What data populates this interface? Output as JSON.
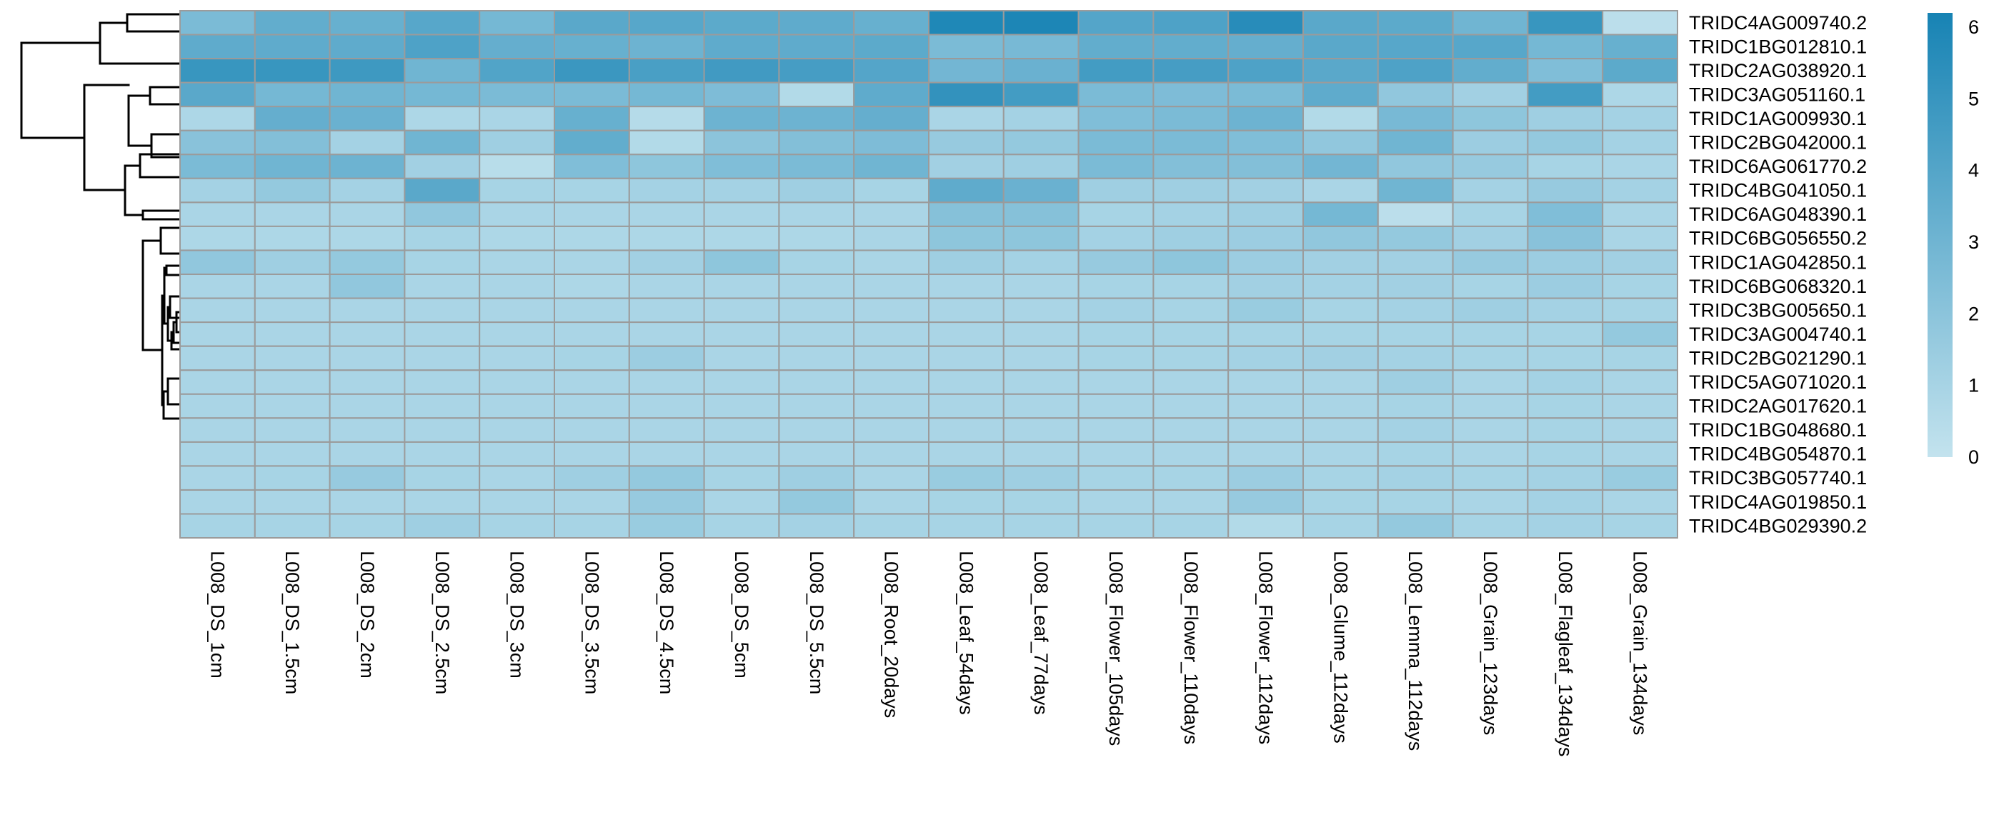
{
  "chart_data": {
    "type": "heatmap",
    "title": "",
    "xlabel": "",
    "ylabel": "",
    "columns": [
      "L008_DS_1cm",
      "L008_DS_1.5cm",
      "L008_DS_2cm",
      "L008_DS_2.5cm",
      "L008_DS_3cm",
      "L008_DS_3.5cm",
      "L008_DS_4.5cm",
      "L008_DS_5cm",
      "L008_DS_5.5cm",
      "L008_Root_20days",
      "L008_Leaf_54days",
      "L008_Leaf_77days",
      "L008_Flower_105days",
      "L008_Flower_110days",
      "L008_Flower_112days",
      "L008_Glume_112days",
      "L008_Lemma_112days",
      "L008_Grain_123days",
      "L008_Flagleaf_134days",
      "L008_Grain_134days"
    ],
    "rows": [
      "TRIDC4AG009740.2",
      "TRIDC1BG012810.1",
      "TRIDC2AG038920.1",
      "TRIDC3AG051160.1",
      "TRIDC1AG009930.1",
      "TRIDC2BG042000.1",
      "TRIDC6AG061770.2",
      "TRIDC4BG041050.1",
      "TRIDC6AG048390.1",
      "TRIDC6BG056550.2",
      "TRIDC1AG042850.1",
      "TRIDC6BG068320.1",
      "TRIDC3BG005650.1",
      "TRIDC3AG004740.1",
      "TRIDC2BG021290.1",
      "TRIDC5AG071020.1",
      "TRIDC2AG017620.1",
      "TRIDC1BG048680.1",
      "TRIDC4BG054870.1",
      "TRIDC3BG057740.1",
      "TRIDC4AG019850.1",
      "TRIDC4BG029390.2"
    ],
    "values": [
      [
        2.6,
        3.5,
        3.3,
        3.9,
        2.8,
        3.8,
        3.9,
        3.7,
        3.6,
        3.3,
        5.9,
        6.0,
        4.0,
        4.2,
        5.6,
        3.8,
        3.7,
        3.0,
        5.0,
        0.3
      ],
      [
        3.6,
        3.6,
        3.6,
        4.2,
        3.4,
        3.3,
        3.1,
        3.6,
        3.6,
        3.7,
        2.6,
        2.7,
        3.5,
        3.5,
        3.4,
        3.8,
        3.9,
        3.9,
        2.8,
        3.3
      ],
      [
        5.0,
        5.0,
        4.8,
        3.0,
        4.1,
        4.9,
        4.4,
        4.7,
        4.5,
        4.0,
        2.9,
        3.2,
        4.6,
        4.5,
        4.2,
        3.8,
        4.2,
        3.5,
        2.4,
        3.7
      ],
      [
        3.8,
        2.8,
        3.0,
        2.8,
        2.6,
        2.6,
        2.8,
        2.5,
        0.6,
        3.6,
        5.2,
        4.6,
        2.6,
        2.5,
        2.6,
        3.6,
        1.8,
        1.2,
        4.6,
        0.8
      ],
      [
        0.8,
        3.4,
        3.2,
        0.8,
        0.9,
        3.3,
        0.5,
        3.1,
        3.1,
        3.4,
        0.9,
        1.1,
        2.4,
        2.6,
        3.1,
        0.6,
        2.7,
        1.9,
        1.3,
        1.1
      ],
      [
        2.1,
        2.3,
        1.1,
        3.0,
        1.3,
        3.5,
        0.6,
        2.0,
        2.3,
        2.5,
        1.6,
        1.7,
        2.6,
        2.6,
        2.4,
        1.8,
        3.0,
        1.4,
        1.7,
        1.1
      ],
      [
        2.6,
        3.0,
        3.1,
        1.2,
        0.4,
        2.4,
        1.9,
        2.4,
        2.6,
        3.0,
        1.2,
        1.3,
        2.6,
        2.3,
        2.3,
        2.9,
        1.8,
        1.6,
        1.0,
        0.9
      ],
      [
        1.1,
        1.7,
        1.1,
        3.8,
        1.0,
        1.0,
        1.1,
        1.1,
        1.3,
        1.0,
        3.6,
        3.2,
        1.3,
        1.3,
        1.2,
        0.9,
        3.0,
        1.1,
        1.6,
        1.1
      ],
      [
        0.9,
        0.9,
        0.9,
        1.8,
        0.9,
        0.9,
        0.9,
        0.9,
        0.9,
        0.9,
        2.2,
        2.2,
        1.0,
        1.1,
        1.3,
        2.8,
        0.3,
        1.0,
        2.4,
        0.9
      ],
      [
        0.8,
        0.8,
        0.8,
        1.0,
        0.8,
        0.8,
        0.8,
        0.8,
        0.8,
        0.9,
        1.9,
        1.9,
        1.1,
        1.3,
        1.4,
        1.8,
        1.7,
        1.2,
        2.1,
        0.9
      ],
      [
        1.8,
        1.3,
        1.7,
        1.0,
        0.9,
        0.9,
        1.2,
        1.9,
        1.0,
        0.9,
        1.3,
        1.1,
        1.6,
        1.9,
        1.4,
        1.2,
        1.2,
        1.6,
        1.4,
        1.2
      ],
      [
        0.9,
        0.9,
        1.8,
        0.9,
        0.9,
        0.8,
        0.9,
        0.9,
        0.9,
        0.9,
        0.9,
        0.9,
        1.0,
        1.0,
        1.2,
        1.1,
        1.2,
        1.0,
        1.4,
        1.0
      ],
      [
        0.9,
        0.9,
        0.9,
        0.9,
        0.9,
        0.9,
        0.9,
        0.9,
        0.9,
        0.9,
        0.9,
        0.9,
        1.1,
        1.0,
        1.5,
        1.0,
        1.1,
        1.3,
        1.1,
        1.0
      ],
      [
        0.9,
        0.9,
        0.9,
        0.9,
        0.9,
        0.9,
        0.9,
        0.9,
        0.9,
        0.9,
        0.9,
        0.9,
        1.0,
        1.0,
        1.0,
        1.0,
        1.0,
        1.0,
        1.0,
        1.7
      ],
      [
        0.9,
        0.9,
        0.9,
        0.9,
        0.9,
        1.0,
        1.4,
        0.9,
        0.9,
        0.9,
        0.9,
        0.9,
        1.0,
        1.0,
        1.1,
        1.2,
        1.1,
        1.0,
        1.0,
        1.0
      ],
      [
        0.9,
        0.9,
        0.9,
        0.9,
        0.9,
        0.9,
        0.9,
        0.9,
        0.9,
        0.9,
        0.9,
        0.9,
        0.9,
        0.9,
        0.9,
        0.9,
        1.3,
        0.9,
        1.1,
        0.9
      ],
      [
        0.9,
        0.9,
        0.9,
        0.9,
        0.9,
        0.9,
        0.9,
        0.9,
        0.9,
        0.9,
        0.9,
        0.9,
        0.9,
        0.9,
        0.9,
        0.9,
        1.0,
        0.9,
        1.0,
        0.9
      ],
      [
        0.9,
        0.9,
        0.9,
        0.9,
        0.9,
        0.9,
        0.9,
        0.9,
        0.9,
        0.9,
        0.9,
        0.9,
        0.9,
        0.9,
        0.9,
        0.9,
        1.1,
        0.9,
        1.0,
        0.9
      ],
      [
        0.9,
        0.9,
        0.9,
        0.9,
        0.9,
        0.9,
        0.9,
        0.9,
        0.9,
        0.9,
        0.9,
        0.9,
        0.9,
        0.9,
        0.9,
        0.9,
        1.0,
        0.9,
        1.0,
        0.9
      ],
      [
        0.9,
        1.0,
        1.6,
        1.0,
        0.9,
        1.3,
        1.7,
        1.0,
        1.3,
        0.9,
        1.5,
        1.3,
        1.0,
        1.0,
        1.4,
        1.0,
        1.1,
        1.0,
        1.1,
        1.5
      ],
      [
        0.9,
        0.9,
        0.9,
        0.9,
        0.9,
        0.9,
        1.6,
        0.9,
        1.7,
        0.9,
        1.0,
        1.0,
        0.9,
        0.9,
        1.6,
        1.0,
        1.0,
        0.9,
        1.1,
        0.9
      ],
      [
        1.0,
        1.0,
        1.0,
        1.3,
        1.0,
        1.0,
        1.5,
        1.0,
        1.1,
        1.0,
        1.0,
        1.0,
        1.0,
        1.0,
        0.6,
        1.0,
        1.7,
        1.0,
        1.1,
        1.0
      ]
    ],
    "legend": {
      "ticks": [
        0,
        1,
        2,
        3,
        4,
        5,
        6
      ],
      "range": [
        0,
        6.2
      ],
      "placement": "right",
      "color_low": "#c3e3ee",
      "color_high": "#1783b4"
    },
    "grid": true,
    "cell_border_color": "#9b9b9b",
    "row_dendrogram": true
  }
}
